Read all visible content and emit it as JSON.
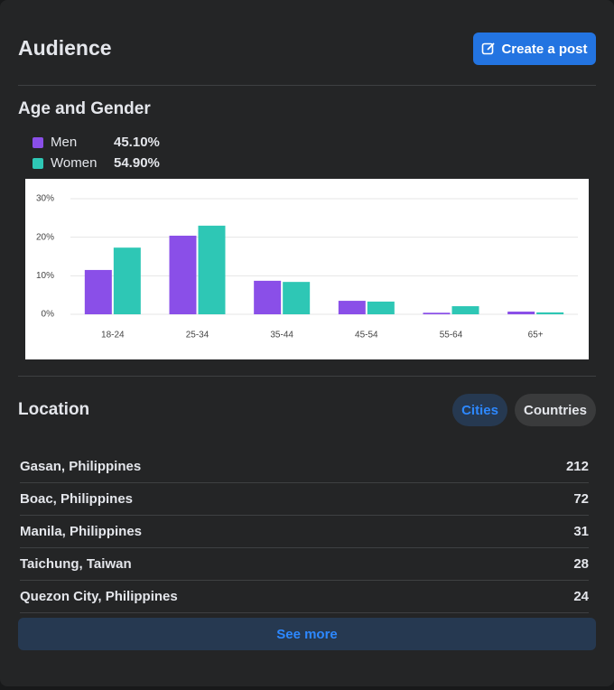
{
  "header": {
    "title": "Audience",
    "button": "Create a post"
  },
  "age_gender": {
    "title": "Age and Gender",
    "legend": [
      {
        "name": "Men",
        "share": "45.10%"
      },
      {
        "name": "Women",
        "share": "54.90%"
      }
    ]
  },
  "chart_data": {
    "type": "bar",
    "categories": [
      "18-24",
      "25-34",
      "35-44",
      "45-54",
      "55-64",
      "65+"
    ],
    "series": [
      {
        "name": "Men",
        "color": "#8a4fe8",
        "values": [
          11.5,
          20.4,
          8.7,
          3.5,
          0.4,
          0.7
        ]
      },
      {
        "name": "Women",
        "color": "#2ec7b5",
        "values": [
          17.3,
          23.0,
          8.4,
          3.3,
          2.1,
          0.5
        ]
      }
    ],
    "ylim": [
      0,
      30
    ],
    "yticks": [
      {
        "value": 0,
        "label": "0%"
      },
      {
        "value": 10,
        "label": "10%"
      },
      {
        "value": 20,
        "label": "20%"
      },
      {
        "value": 30,
        "label": "30%"
      }
    ],
    "grid": true
  },
  "location": {
    "title": "Location",
    "tabs": [
      "Cities",
      "Countries"
    ],
    "rows": [
      [
        "Gasan, Philippines",
        212
      ],
      [
        "Boac, Philippines",
        72
      ],
      [
        "Manila, Philippines",
        31
      ],
      [
        "Taichung, Taiwan",
        28
      ],
      [
        "Quezon City, Philippines",
        24
      ]
    ],
    "button": "See more"
  }
}
